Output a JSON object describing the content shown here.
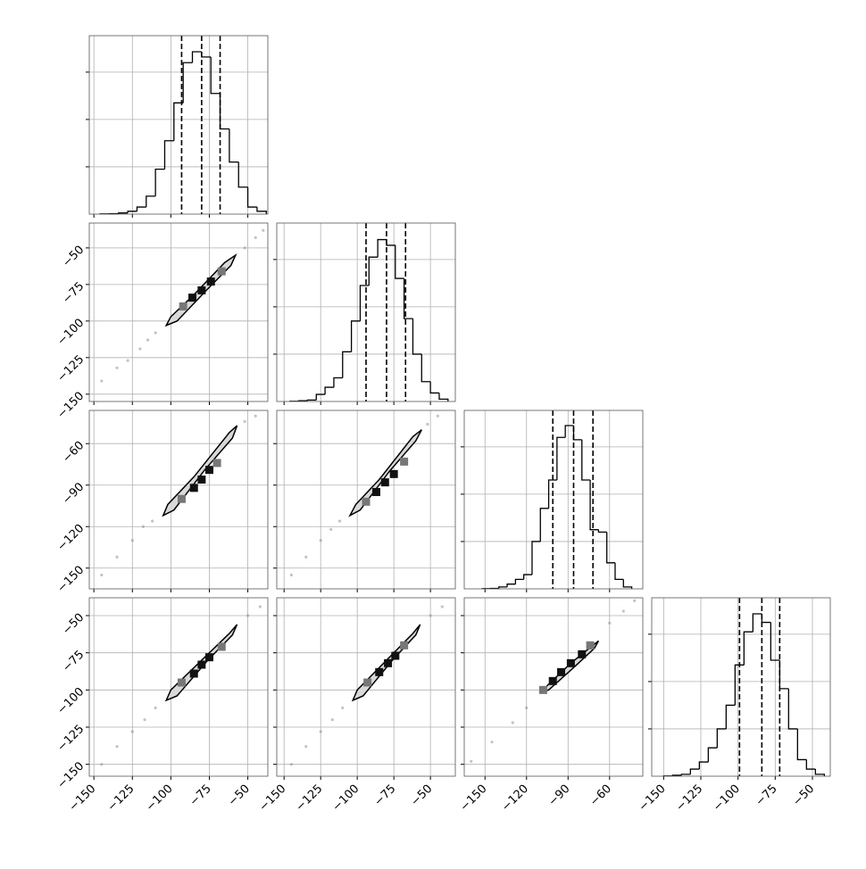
{
  "chart_data": {
    "type": "corner",
    "grid": true,
    "color": "#000000",
    "sample_color": "#888888",
    "params": [
      {
        "lim": [
          -153,
          -37
        ],
        "ticks": [
          {
            "value": -150,
            "label": "−150"
          },
          {
            "value": -125,
            "label": "−125"
          },
          {
            "value": -100,
            "label": "−100"
          },
          {
            "value": -75,
            "label": "−75"
          },
          {
            "value": -50,
            "label": "−50"
          }
        ]
      },
      {
        "lim": [
          -155,
          -33
        ],
        "ticks": [
          {
            "value": -150,
            "label": "−150"
          },
          {
            "value": -125,
            "label": "−125"
          },
          {
            "value": -100,
            "label": "−100"
          },
          {
            "value": -75,
            "label": "−75"
          },
          {
            "value": -50,
            "label": "−50"
          }
        ]
      },
      {
        "lim": [
          -165,
          -36
        ],
        "ticks": [
          {
            "value": -150,
            "label": "−150"
          },
          {
            "value": -120,
            "label": "−120"
          },
          {
            "value": -90,
            "label": "−90"
          },
          {
            "value": -60,
            "label": "−60"
          }
        ]
      },
      {
        "lim": [
          -158,
          -38
        ],
        "ticks": [
          {
            "value": -150,
            "label": "−150"
          },
          {
            "value": -125,
            "label": "−125"
          },
          {
            "value": -100,
            "label": "−100"
          },
          {
            "value": -75,
            "label": "−75"
          },
          {
            "value": -50,
            "label": "−50"
          }
        ]
      }
    ],
    "hists": [
      {
        "ylim": [
          0,
          3770
        ],
        "yticks": [
          1000,
          2000,
          3000
        ],
        "quantiles": [
          -93,
          -80,
          -68
        ],
        "bins": [
          -146,
          -140,
          -134,
          -128,
          -122,
          -116,
          -110,
          -104,
          -98,
          -92,
          -86,
          -80,
          -74,
          -68,
          -62,
          -56,
          -50,
          -44,
          -38
        ],
        "counts": [
          5,
          10,
          25,
          60,
          150,
          380,
          950,
          1550,
          2350,
          3200,
          3430,
          3320,
          2550,
          1800,
          1100,
          570,
          150,
          60
        ]
      },
      {
        "ylim": [
          0,
          3770
        ],
        "yticks": [
          1000,
          2000,
          3000
        ],
        "quantiles": [
          -94,
          -80,
          -67
        ],
        "bins": [
          -146,
          -140,
          -134,
          -128,
          -122,
          -116,
          -110,
          -104,
          -98,
          -92,
          -86,
          -80,
          -74,
          -68,
          -62,
          -56,
          -50,
          -44,
          -38
        ],
        "counts": [
          5,
          15,
          30,
          150,
          300,
          500,
          1050,
          1700,
          2450,
          3050,
          3420,
          3300,
          2600,
          1750,
          1000,
          420,
          180,
          50
        ]
      },
      {
        "ylim": [
          0,
          3770
        ],
        "yticks": [
          1000,
          2000,
          3000
        ],
        "quantiles": [
          -101,
          -86,
          -72
        ],
        "bins": [
          -152,
          -146,
          -140,
          -134,
          -128,
          -122,
          -116,
          -110,
          -104,
          -98,
          -92,
          -86,
          -80,
          -74,
          -68,
          -62,
          -56,
          -50,
          -44
        ],
        "counts": [
          5,
          10,
          40,
          100,
          200,
          300,
          1000,
          1700,
          2300,
          3200,
          3450,
          3150,
          2300,
          1250,
          1200,
          550,
          200,
          40
        ]
      },
      {
        "ylim": [
          0,
          3770
        ],
        "yticks": [
          1000,
          2000,
          3000
        ],
        "quantiles": [
          -99,
          -84,
          -72
        ],
        "bins": [
          -150,
          -144,
          -138,
          -132,
          -126,
          -120,
          -114,
          -108,
          -102,
          -96,
          -90,
          -84,
          -78,
          -72,
          -66,
          -60,
          -54,
          -48,
          -42
        ],
        "counts": [
          5,
          20,
          40,
          150,
          300,
          600,
          1000,
          1500,
          2350,
          3050,
          3430,
          3250,
          2450,
          1850,
          1000,
          350,
          150,
          40
        ]
      }
    ],
    "panels": [
      {
        "contour": {
          "x": [
            -103,
            -100,
            -85,
            -65,
            -58,
            -61,
            -76,
            -96
          ],
          "y": [
            -103,
            -97,
            -82,
            -60,
            -55,
            -62,
            -78,
            -100
          ]
        },
        "peaks": {
          "x": [
            -92,
            -86,
            -80,
            -74,
            -67
          ],
          "y": [
            -90,
            -84,
            -79,
            -73,
            -66
          ]
        },
        "samples": {
          "x": [
            -145,
            -135,
            -128,
            -120,
            -115,
            -110,
            -52,
            -45,
            -40
          ],
          "y": [
            -141,
            -132,
            -127,
            -119,
            -113,
            -108,
            -50,
            -43,
            -38
          ]
        }
      },
      {
        "contour": {
          "x": [
            -105,
            -102,
            -85,
            -62,
            -57,
            -60,
            -78,
            -98
          ],
          "y": [
            -112,
            -104,
            -84,
            -52,
            -47,
            -56,
            -79,
            -108
          ]
        },
        "peaks": {
          "x": [
            -93,
            -85,
            -80,
            -75,
            -70
          ],
          "y": [
            -100,
            -92,
            -86,
            -79,
            -74
          ]
        },
        "samples": {
          "x": [
            -145,
            -135,
            -125,
            -118,
            -112,
            -52,
            -45
          ],
          "y": [
            -155,
            -142,
            -130,
            -120,
            -116,
            -44,
            -40
          ]
        }
      },
      {
        "contour": {
          "x": [
            -105,
            -101,
            -85,
            -62,
            -56,
            -60,
            -78,
            -98
          ],
          "y": [
            -112,
            -104,
            -86,
            -55,
            -50,
            -58,
            -80,
            -108
          ]
        },
        "peaks": {
          "x": [
            -94,
            -87,
            -81,
            -75,
            -68
          ],
          "y": [
            -102,
            -95,
            -88,
            -82,
            -73
          ]
        },
        "samples": {
          "x": [
            -145,
            -135,
            -125,
            -118,
            -112,
            -52,
            -45
          ],
          "y": [
            -155,
            -142,
            -130,
            -122,
            -116,
            -46,
            -40
          ]
        }
      },
      {
        "contour": {
          "x": [
            -103,
            -100,
            -84,
            -62,
            -57,
            -60,
            -76,
            -96
          ],
          "y": [
            -107,
            -100,
            -84,
            -62,
            -56,
            -63,
            -80,
            -104
          ]
        },
        "peaks": {
          "x": [
            -93,
            -85,
            -80,
            -75,
            -67
          ],
          "y": [
            -95,
            -89,
            -83,
            -78,
            -71
          ]
        },
        "samples": {
          "x": [
            -145,
            -135,
            -125,
            -117,
            -110,
            -50,
            -42
          ],
          "y": [
            -150,
            -138,
            -128,
            -120,
            -112,
            -50,
            -44
          ]
        }
      },
      {
        "contour": {
          "x": [
            -103,
            -100,
            -84,
            -62,
            -57,
            -60,
            -76,
            -96
          ],
          "y": [
            -107,
            -100,
            -84,
            -62,
            -56,
            -63,
            -80,
            -104
          ]
        },
        "peaks": {
          "x": [
            -93,
            -85,
            -79,
            -74,
            -68
          ],
          "y": [
            -95,
            -88,
            -82,
            -77,
            -70
          ]
        },
        "samples": {
          "x": [
            -145,
            -135,
            -125,
            -117,
            -110,
            -50,
            -42
          ],
          "y": [
            -150,
            -138,
            -128,
            -120,
            -112,
            -50,
            -44
          ]
        }
      },
      {
        "contour": {
          "x": [
            -108,
            -105,
            -88,
            -72,
            -68,
            -71,
            -86,
            -104
          ],
          "y": [
            -101,
            -97,
            -82,
            -70,
            -67,
            -72,
            -85,
            -100
          ]
        },
        "peaks": {
          "x": [
            -108,
            -101,
            -95,
            -88,
            -80,
            -74
          ],
          "y": [
            -100,
            -94,
            -88,
            -82,
            -76,
            -70
          ]
        },
        "samples": {
          "x": [
            -160,
            -145,
            -130,
            -120,
            -60,
            -50,
            -42
          ],
          "y": [
            -148,
            -135,
            -122,
            -112,
            -55,
            -47,
            -40
          ]
        }
      }
    ]
  }
}
